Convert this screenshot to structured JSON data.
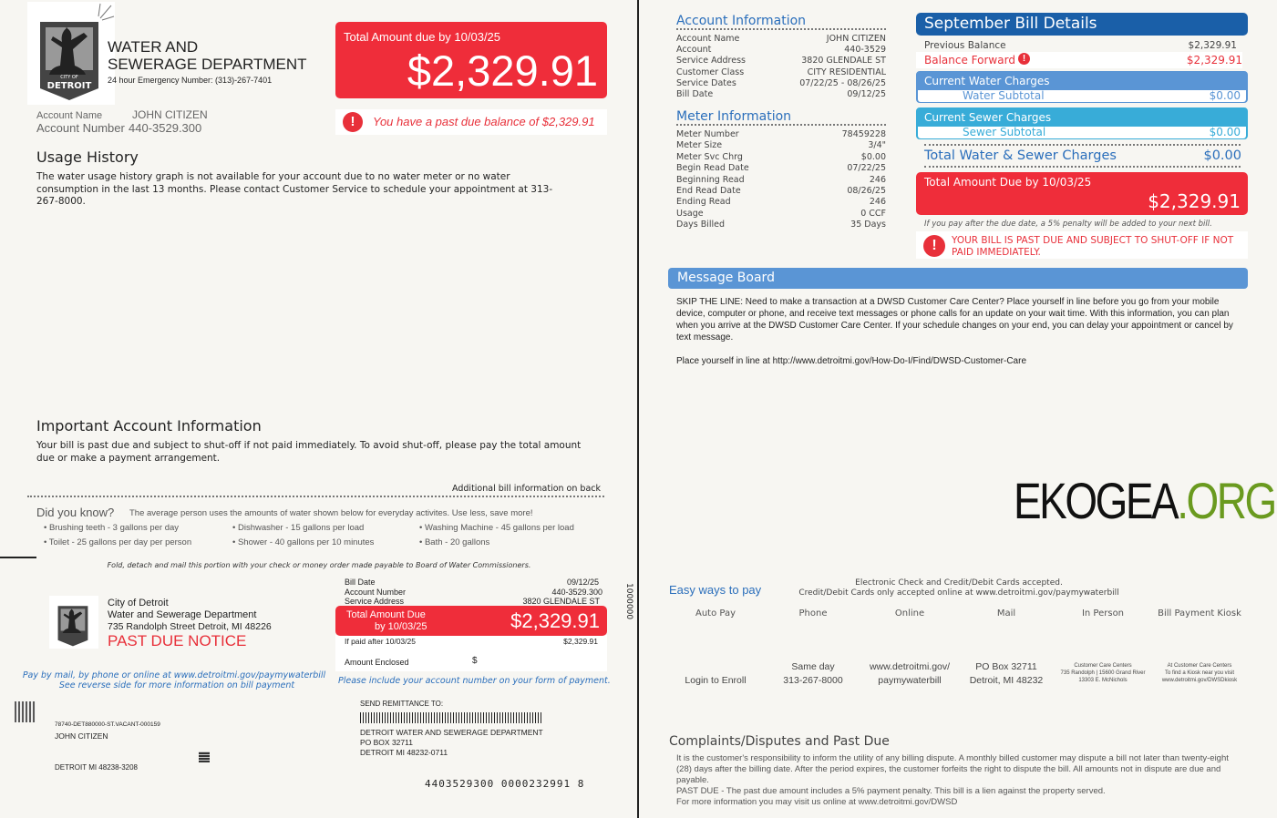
{
  "header": {
    "dept_line1": "WATER AND",
    "dept_line2": "SEWERAGE DEPARTMENT",
    "emergency": "24 hour Emergency Number: (313)-267-7401",
    "logo_text_small": "CITY OF",
    "logo_text": "DETROIT"
  },
  "total_box": {
    "label": "Total Amount due by 10/03/25",
    "amount": "$2,329.91"
  },
  "past_due_msg": "You have a past due balance of $2,329.91",
  "account": {
    "name_label": "Account Name",
    "name": "JOHN CITIZEN",
    "number_label": "Account Number",
    "number": "440-3529.300"
  },
  "usage": {
    "title": "Usage History",
    "text": "The water usage history graph is not available for your account due to no water meter or no water consumption in the last 13 months. Please contact Customer Service to schedule your appointment at 313-267-8000."
  },
  "important": {
    "title": "Important Account Information",
    "text": "Your bill is past due and subject to shut-off if not paid immediately.  To avoid shut-off, please pay the total amount due or make a payment arrangement."
  },
  "additional": "Additional bill information on back",
  "did_you_know": {
    "title": "Did you know?",
    "intro": "The average person uses the amounts of water shown below for everyday activites.  Use less, save more!",
    "items": [
      "Brushing teeth - 3 gallons per day",
      "Dishwasher - 15 gallons per load",
      "Washing Machine - 45 gallons per load",
      "Toilet - 25 gallons per day per person",
      "Shower - 40 gallons per 10 minutes",
      "Bath - 20 gallons"
    ]
  },
  "fold_text": "Fold, detach and mail this portion with your check or money order made payable to Board of Water  Commissioners.",
  "stub": {
    "city": "City of Detroit",
    "dept": "Water and Sewerage Department",
    "address": "735 Randolph Street Detroit, MI 48226",
    "notice": "PAST DUE NOTICE",
    "bill_date_label": "Bill Date",
    "bill_date": "09/12/25",
    "acct_label": "Account Number",
    "acct": "440-3529.300",
    "svc_label": "Service Address",
    "svc": "3820 GLENDALE ST",
    "due_label1": "Total Amount Due",
    "due_label2": "by 10/03/25",
    "due_amount": "$2,329.91",
    "after_label": "If paid after 10/03/25",
    "after_amount": "$2,329.91",
    "enclosed_label": "Amount Enclosed",
    "enclosed_symbol": "$",
    "pay_line1": "Pay by mail, by phone or online at www.detroitmi.gov/paymywaterbill",
    "pay_line2": "See reverse side for more information on bill payment",
    "include_note": "Please include your account number on your form of payment.",
    "mail_code": "78740-DET880000-ST.VACANT-000159",
    "mail_name": "JOHN CITIZEN",
    "mail_city": "DETROIT  MI  48238-3208",
    "remit_label": "SEND REMITTANCE TO:",
    "remit_name": "DETROIT WATER AND SEWERAGE DEPARTMENT",
    "remit_box": "PO BOX 32711",
    "remit_city": "DETROIT  MI  48232-0711",
    "scanline": "4403529300 0000232991 8",
    "side_code": "1000000"
  },
  "account_info": {
    "title": "Account Information",
    "rows": [
      [
        "Account Name",
        "JOHN CITIZEN"
      ],
      [
        "Account",
        "440-3529"
      ],
      [
        "Service Address",
        "3820 GLENDALE ST"
      ],
      [
        "Customer Class",
        "CITY RESIDENTIAL"
      ],
      [
        "Service Dates",
        "07/22/25 - 08/26/25"
      ],
      [
        "Bill Date",
        "09/12/25"
      ]
    ]
  },
  "meter_info": {
    "title": "Meter Information",
    "rows": [
      [
        "Meter Number",
        "78459228"
      ],
      [
        "Meter Size",
        "3/4\""
      ],
      [
        "Meter Svc Chrg",
        "$0.00"
      ],
      [
        "Begin Read Date",
        "07/22/25"
      ],
      [
        "Beginning Read",
        "246"
      ],
      [
        "End Read Date",
        "08/26/25"
      ],
      [
        "Ending Read",
        "246"
      ],
      [
        "Usage",
        "0 CCF"
      ],
      [
        "Days Billed",
        "35 Days"
      ]
    ]
  },
  "bill_details": {
    "title": "September Bill Details",
    "prev_label": "Previous Balance",
    "prev": "$2,329.91",
    "fwd_label": "Balance Forward",
    "fwd": "$2,329.91",
    "water_title": "Current Water Charges",
    "water_sub_label": "Water Subtotal",
    "water_sub": "$0.00",
    "sewer_title": "Current Sewer Charges",
    "sewer_sub_label": "Sewer Subtotal",
    "sewer_sub": "$0.00",
    "total_ws_label": "Total Water & Sewer Charges",
    "total_ws": "$0.00",
    "due_label": "Total Amount Due by 10/03/25",
    "due": "$2,329.91",
    "penalty": "If you pay after the due date, a 5% penalty will be added to your next bill.",
    "shutoff": "YOUR BILL IS PAST DUE AND SUBJECT TO SHUT-OFF IF NOT PAID IMMEDIATELY."
  },
  "message_board": {
    "title": "Message Board",
    "text1": "SKIP THE LINE: Need to make a transaction at a DWSD Customer Care Center? Place yourself in line before you go from your mobile device, computer or phone, and receive text messages or phone calls for an update on your wait time. With this information, you can plan when you arrive at the DWSD Customer Care Center. If your schedule changes on your end, you can delay your appointment or cancel by text message.",
    "text2": "Place yourself in line at http://www.detroitmi.gov/How-Do-I/Find/DWSD-Customer-Care"
  },
  "pay": {
    "title": "Easy ways to pay",
    "note1": "Electronic Check and Credit/Debit Cards accepted.",
    "note2": "Credit/Debit Cards only accepted online at www.detroitmi.gov/paymywaterbill",
    "methods": [
      {
        "name": "Auto Pay",
        "l1": "",
        "l2": "Login to Enroll",
        "l3": ""
      },
      {
        "name": "Phone",
        "l1": "Same day",
        "l2": "313-267-8000",
        "l3": ""
      },
      {
        "name": "Online",
        "l1": "www.detroitmi.gov/",
        "l2": "paymywaterbill",
        "l3": ""
      },
      {
        "name": "Mail",
        "l1": "PO Box 32711",
        "l2": "Detroit, MI 48232",
        "l3": ""
      },
      {
        "name": "In Person",
        "l1": "Customer Care Centers",
        "l2": "735 Randolph | 15600 Grand River",
        "l3": "13303 E. McNichols"
      },
      {
        "name": "Bill Payment  Kiosk",
        "l1": "At Customer Care Centers",
        "l2": "To find a Kiosk near you visit",
        "l3": "www.detroitmi.gov/DWSDkiosk"
      }
    ]
  },
  "complaints": {
    "title": "Complaints/Disputes and Past Due",
    "text": "It is the customer's responsibility to inform the utility of any billing dispute. A monthly billed customer may dispute a bill not later than twenty-eight (28) days after the billing date.  After the period expires, the customer forfeits the right to dispute the bill.  All amounts not in dispute are due and payable.",
    "text2": "PAST DUE - The past due amount includes a 5% payment penalty.  This bill is a lien against the property served.",
    "text3": "For more information you may visit us online at www.detroitmi.gov/DWSD"
  },
  "watermark": {
    "part1": "EKOGEA",
    "part2": ".ORG"
  },
  "colors": {
    "red": "#ef2d3a",
    "dark_blue": "#1a5fa8",
    "water_blue": "#5a95d5",
    "sewer_blue": "#38acd8",
    "text_blue": "#2a6ebb",
    "watermark_green": "#6a9a1f"
  }
}
